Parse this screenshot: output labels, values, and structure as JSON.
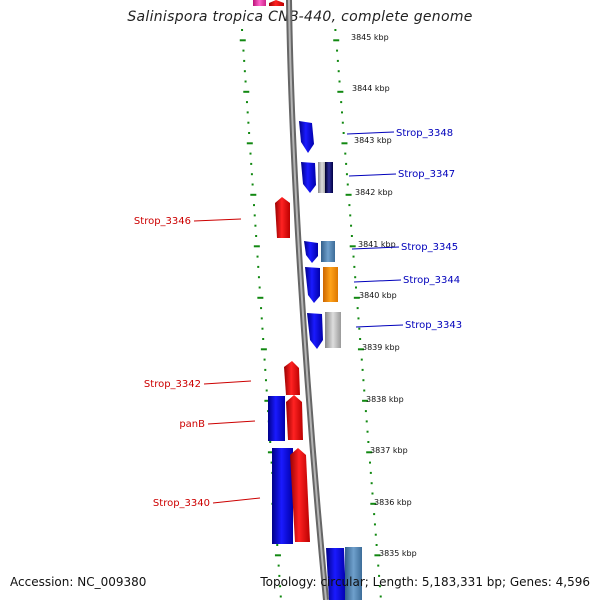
{
  "title": "Salinispora tropica CNB-440, complete genome",
  "footer": {
    "accession": "Accession: NC_009380",
    "summary": "Topology: circular; Length: 5,183,331 bp; Genes: 4,596"
  },
  "colors": {
    "forward": "#0000ee",
    "reverse": "#ee0000",
    "label_forward": "#0000bb",
    "label_reverse": "#cc0000",
    "backbone": "#888888",
    "ticks": "#118811",
    "orange": "#ff9900",
    "steel": "#5588bb",
    "grey": "#bbbbbb",
    "navy": "#000066",
    "magenta": "#ff33aa"
  },
  "ticks": [
    {
      "kbp": 3845,
      "label": "3845 kbp"
    },
    {
      "kbp": 3844,
      "label": "3844 kbp"
    },
    {
      "kbp": 3843,
      "label": "3843 kbp"
    },
    {
      "kbp": 3842,
      "label": "3842 kbp"
    },
    {
      "kbp": 3841,
      "label": "3841 kbp"
    },
    {
      "kbp": 3840,
      "label": "3840 kbp"
    },
    {
      "kbp": 3839,
      "label": "3839 kbp"
    },
    {
      "kbp": 3838,
      "label": "3838 kbp"
    },
    {
      "kbp": 3837,
      "label": "3837 kbp"
    },
    {
      "kbp": 3836,
      "label": "3836 kbp"
    },
    {
      "kbp": 3835,
      "label": "3835 kbp"
    }
  ],
  "gene_labels": [
    {
      "name": "Strop_3348",
      "strand": "forward"
    },
    {
      "name": "Strop_3347",
      "strand": "forward"
    },
    {
      "name": "Strop_3346",
      "strand": "reverse"
    },
    {
      "name": "Strop_3345",
      "strand": "forward"
    },
    {
      "name": "Strop_3344",
      "strand": "forward"
    },
    {
      "name": "Strop_3343",
      "strand": "forward"
    },
    {
      "name": "Strop_3342",
      "strand": "reverse"
    },
    {
      "name": "panB",
      "strand": "reverse"
    },
    {
      "name": "Strop_3340",
      "strand": "reverse"
    }
  ]
}
